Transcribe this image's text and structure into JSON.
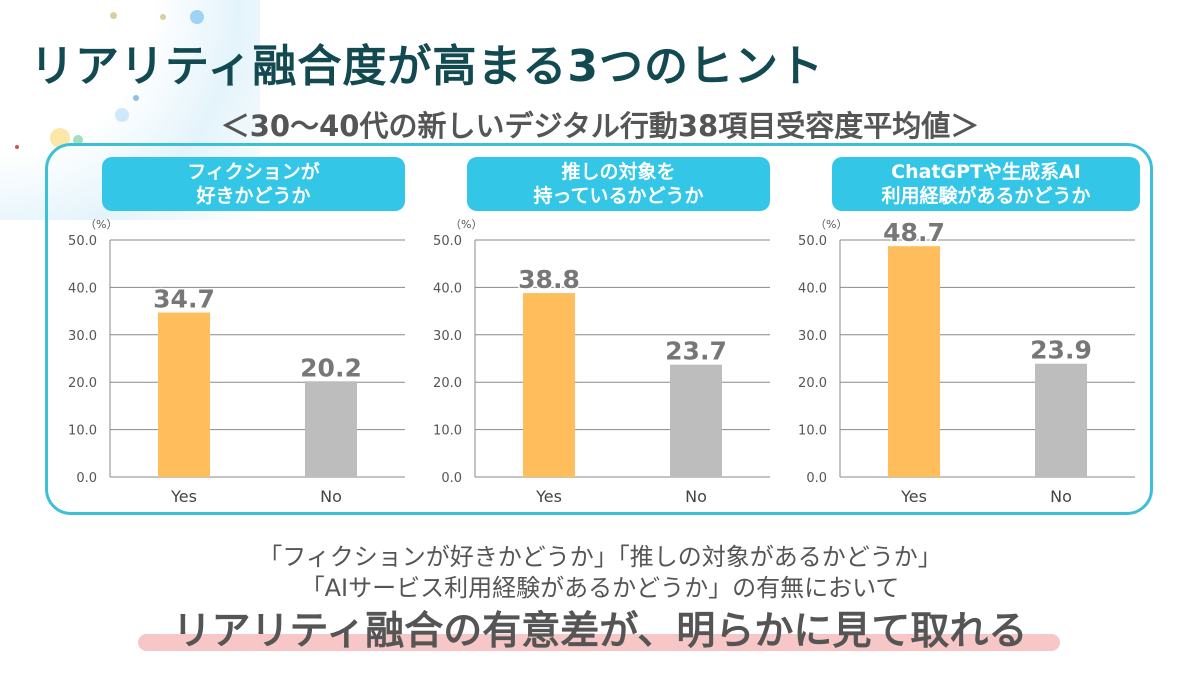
{
  "title": "リアリティ融合度が高まる3つのヒント",
  "subtitle": "＜30～40代の新しいデジタル行動38項目受容度平均値＞",
  "colors": {
    "yes": "#ffbd5c",
    "no": "#bdbdbd",
    "frame": "#3cc0d8",
    "pill": "#33c6e6",
    "title": "#134a52",
    "highlight": "#f7c7c7"
  },
  "chart_data": [
    {
      "type": "bar",
      "title_lines": [
        "フィクションが",
        "好きかどうか"
      ],
      "ylabel": "（%）",
      "ylim": [
        0,
        50
      ],
      "yticks": [
        "0.0",
        "10.0",
        "20.0",
        "30.0",
        "40.0",
        "50.0"
      ],
      "grid": true,
      "categories": [
        "Yes",
        "No"
      ],
      "values": [
        34.7,
        20.2
      ],
      "labels": [
        "34.7",
        "20.2"
      ]
    },
    {
      "type": "bar",
      "title_lines": [
        "推しの対象を",
        "持っているかどうか"
      ],
      "ylabel": "（%）",
      "ylim": [
        0,
        50
      ],
      "yticks": [
        "0.0",
        "10.0",
        "20.0",
        "30.0",
        "40.0",
        "50.0"
      ],
      "grid": true,
      "categories": [
        "Yes",
        "No"
      ],
      "values": [
        38.8,
        23.7
      ],
      "labels": [
        "38.8",
        "23.7"
      ]
    },
    {
      "type": "bar",
      "title_lines": [
        "ChatGPTや生成系AI",
        "利用経験があるかどうか"
      ],
      "ylabel": "（%）",
      "ylim": [
        0,
        50
      ],
      "yticks": [
        "0.0",
        "10.0",
        "20.0",
        "30.0",
        "40.0",
        "50.0"
      ],
      "grid": true,
      "categories": [
        "Yes",
        "No"
      ],
      "values": [
        48.7,
        23.9
      ],
      "labels": [
        "48.7",
        "23.9"
      ]
    }
  ],
  "footer": {
    "line1": "「フィクションが好きかどうか」「推しの対象があるかどうか」",
    "line2": "「AIサービス利用経験があるかどうか」の有無において",
    "conclusion": "リアリティ融合の有意差が、明らかに見て取れる"
  }
}
